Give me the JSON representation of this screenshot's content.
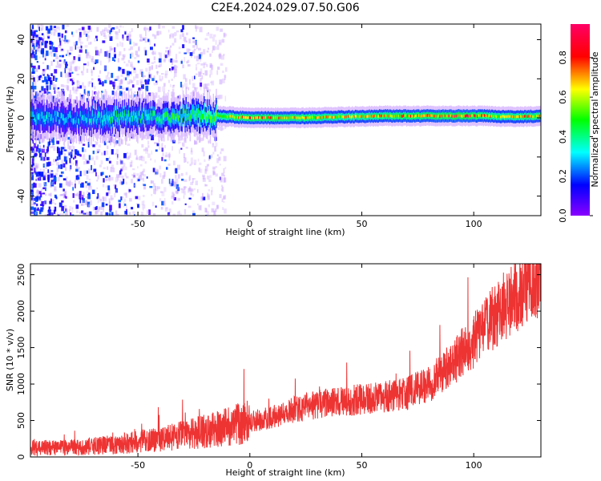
{
  "figure_title": "C2E4.2024.029.07.50.G06",
  "chart_data": [
    {
      "type": "heatmap",
      "xlabel": "Height of straight line (km)",
      "ylabel": "Frequency (Hz)",
      "xlim": [
        -98,
        130
      ],
      "ylim": [
        -50,
        48
      ],
      "xticks": [
        -50,
        0,
        50,
        100
      ],
      "yticks": [
        -40,
        -20,
        0,
        20,
        40
      ],
      "grid": false,
      "colorbar": {
        "label": "Normalized spectral amplitude",
        "range": [
          0,
          0.97
        ],
        "ticks": [
          "0.0",
          "0.2",
          "0.4",
          "0.6",
          "0.8"
        ],
        "tick_values": [
          0,
          0.2,
          0.4,
          0.6,
          0.8
        ],
        "colormap": "gist_rainbow (violet-blue-cyan-green-yellow-red-magenta)"
      },
      "ridge": {
        "description": "Narrow band centered near 0 Hz along the full height range",
        "center_frequency_hz": [
          [
            -96,
            0
          ],
          [
            -80,
            0
          ],
          [
            -60,
            0
          ],
          [
            -40,
            0.5
          ],
          [
            -25,
            1.5
          ],
          [
            -15,
            1
          ],
          [
            0,
            0
          ],
          [
            20,
            0
          ],
          [
            40,
            0.5
          ],
          [
            60,
            1
          ],
          [
            80,
            1
          ],
          [
            100,
            1
          ],
          [
            105,
            1
          ],
          [
            120,
            0.5
          ],
          [
            130,
            1
          ]
        ],
        "peak_amplitude": [
          [
            -96,
            0.35
          ],
          [
            -80,
            0.3
          ],
          [
            -60,
            0.45
          ],
          [
            -50,
            0.4
          ],
          [
            -35,
            0.5
          ],
          [
            -25,
            0.55
          ],
          [
            -15,
            0.7
          ],
          [
            0,
            0.85
          ],
          [
            20,
            0.8
          ],
          [
            40,
            0.75
          ],
          [
            60,
            0.8
          ],
          [
            80,
            0.85
          ],
          [
            95,
            0.9
          ],
          [
            110,
            0.75
          ],
          [
            130,
            0.8
          ]
        ],
        "noise_region_x": [
          -98,
          -15
        ]
      }
    },
    {
      "type": "line",
      "xlabel": "Height of straight line (km)",
      "ylabel": "SNR (10 * v/v)",
      "xlim": [
        -98,
        130
      ],
      "ylim": [
        0,
        2650
      ],
      "xticks": [
        -50,
        0,
        50,
        100
      ],
      "yticks": [
        0,
        500,
        1000,
        1500,
        2000,
        2500
      ],
      "grid": false,
      "series": [
        {
          "color": "#ee3333",
          "trend_x": [
            -98,
            -80,
            -60,
            -40,
            -20,
            -10,
            0,
            10,
            20,
            30,
            40,
            50,
            60,
            70,
            80,
            90,
            100,
            110,
            120,
            130
          ],
          "trend_y": [
            120,
            130,
            170,
            250,
            350,
            420,
            480,
            550,
            650,
            720,
            760,
            790,
            820,
            870,
            1000,
            1250,
            1600,
            1950,
            2250,
            2450
          ]
        }
      ]
    }
  ]
}
